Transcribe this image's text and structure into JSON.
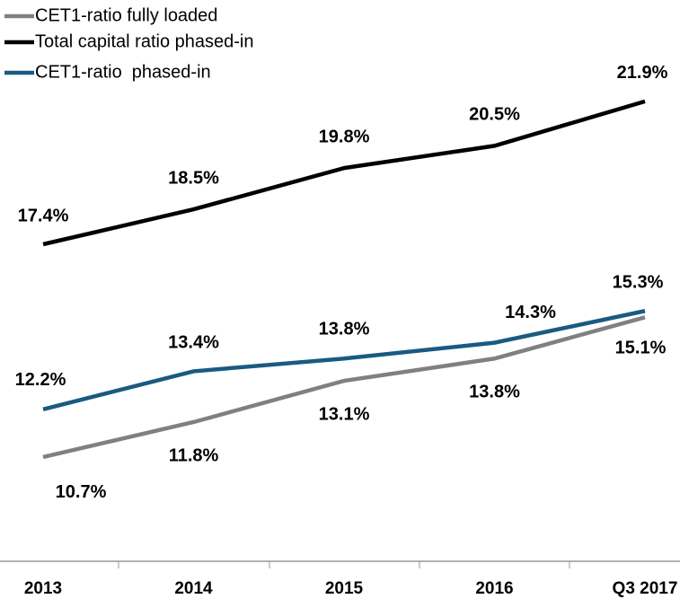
{
  "chart_data": {
    "type": "line",
    "categories": [
      "2013",
      "2014",
      "2015",
      "2016",
      "Q3 2017"
    ],
    "ylim": [
      9,
      23
    ],
    "series": [
      {
        "name": "CET1-ratio fully loaded",
        "color": "#808080",
        "values": [
          10.7,
          11.8,
          13.1,
          13.8,
          15.1
        ],
        "value_labels": [
          "10.7%",
          "11.8%",
          "13.1%",
          "13.8%",
          "15.1%"
        ]
      },
      {
        "name": "Total capital ratio phased-in",
        "color": "#000000",
        "values": [
          17.4,
          18.5,
          19.8,
          20.5,
          21.9
        ],
        "value_labels": [
          "17.4%",
          "18.5%",
          "19.8%",
          "20.5%",
          "21.9%"
        ]
      },
      {
        "name": "CET1-ratio  phased-in",
        "color": "#1a5a80",
        "values": [
          12.2,
          13.4,
          13.8,
          14.3,
          15.3
        ],
        "value_labels": [
          "12.2%",
          "13.4%",
          "13.8%",
          "14.3%",
          "15.3%"
        ]
      }
    ]
  }
}
